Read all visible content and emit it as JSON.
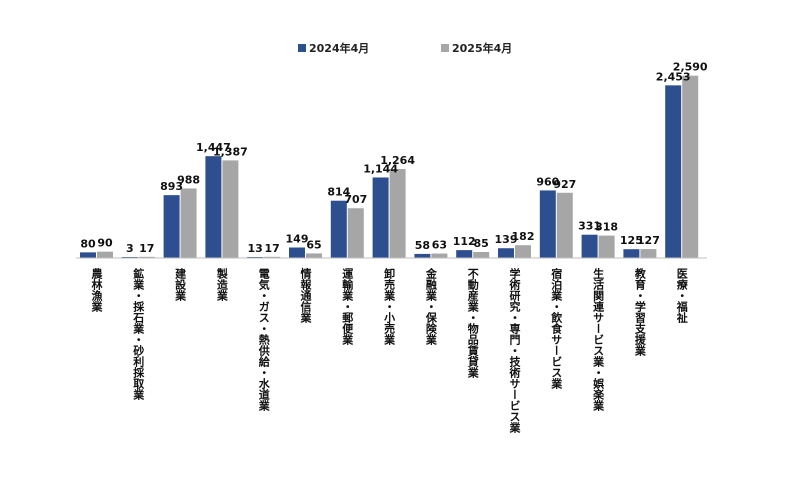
{
  "chart_data": {
    "type": "bar",
    "categories": [
      "農林漁業",
      "鉱業・採石業・砂利採取業",
      "建設業",
      "製造業",
      "電気・ガス・熱供給・水道業",
      "情報通信業",
      "運輸業・郵便業",
      "卸売業・小売業",
      "金融業・保険業",
      "不動産業・物品賃貸業",
      "学術研究・専門・技術サービス業",
      "宿泊業・飲食サービス業",
      "生活関連サービス業・娯楽業",
      "教育・学習支援業",
      "医療・福祉"
    ],
    "series": [
      {
        "name": "2024年4月",
        "color": "#2E4F8F",
        "values": [
          80,
          3,
          893,
          1447,
          13,
          149,
          814,
          1144,
          58,
          112,
          139,
          960,
          331,
          125,
          2453
        ],
        "labels": [
          "80",
          "3",
          "893",
          "1,447",
          "13",
          "149",
          "814",
          "1,144",
          "58",
          "112",
          "139",
          "960",
          "331",
          "125",
          "2,453"
        ]
      },
      {
        "name": "2025年4月",
        "color": "#A6A6A6",
        "values": [
          90,
          17,
          988,
          1387,
          17,
          65,
          707,
          1264,
          63,
          85,
          182,
          927,
          318,
          127,
          2590
        ],
        "labels": [
          "90",
          "17",
          "988",
          "1,387",
          "17",
          "65",
          "707",
          "1,264",
          "63",
          "85",
          "182",
          "927",
          "318",
          "127",
          "2,590"
        ]
      }
    ],
    "title": "",
    "xlabel": "",
    "ylabel": "",
    "ylim": [
      0,
      2600
    ],
    "grid": false,
    "legend": "top"
  }
}
